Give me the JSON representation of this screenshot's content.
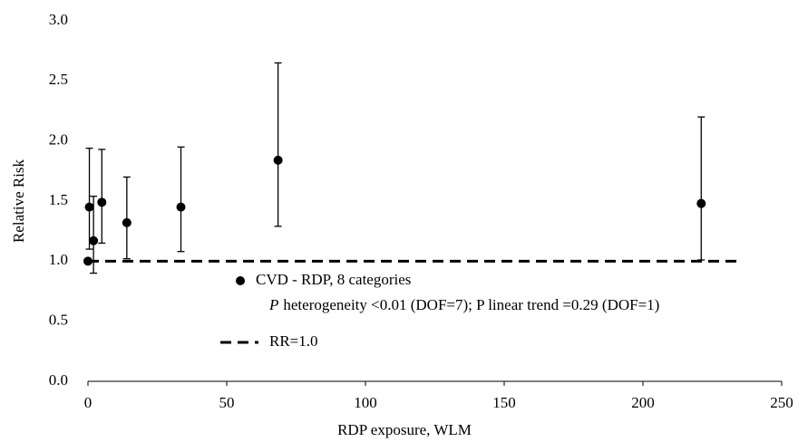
{
  "chart_data": {
    "type": "scatter",
    "x_label": "RDP exposure, WLM",
    "y_label": "Relative Risk",
    "xlim": [
      0,
      250
    ],
    "xticks": [
      0,
      50,
      100,
      150,
      200,
      250
    ],
    "ylim": [
      0,
      3
    ],
    "yticks": [
      {
        "value": 0,
        "label": "0.0"
      },
      {
        "value": 0.5,
        "label": "0.5"
      },
      {
        "value": 1,
        "label": "1.0"
      },
      {
        "value": 1.5,
        "label": "1.5"
      },
      {
        "value": 2,
        "label": "2.0"
      },
      {
        "value": 2.5,
        "label": "2.5"
      },
      {
        "value": 3,
        "label": "3.0"
      }
    ],
    "grid": false,
    "series": [
      {
        "name": "CVD - RDP, 8 categories",
        "color": "#000000",
        "x": [
          0,
          0.5,
          2,
          5,
          14,
          33.5,
          68.5,
          221
        ],
        "values": [
          1.0,
          1.45,
          1.17,
          1.49,
          1.32,
          1.45,
          1.84,
          1.48
        ],
        "lower": [
          1.0,
          1.1,
          0.9,
          1.15,
          1.02,
          1.08,
          1.29,
          1.01
        ],
        "upper": [
          1.0,
          1.94,
          1.54,
          1.93,
          1.7,
          1.95,
          2.65,
          2.2
        ]
      },
      {
        "name": "RR=1.0",
        "color": "#000000",
        "dashed": true,
        "x": [
          0,
          234
        ],
        "values": [
          1,
          1
        ]
      }
    ],
    "annotation_prefix": "P",
    "annotation": "heterogeneity <0.01 (DOF=7); P linear trend =0.29 (DOF=1)"
  }
}
